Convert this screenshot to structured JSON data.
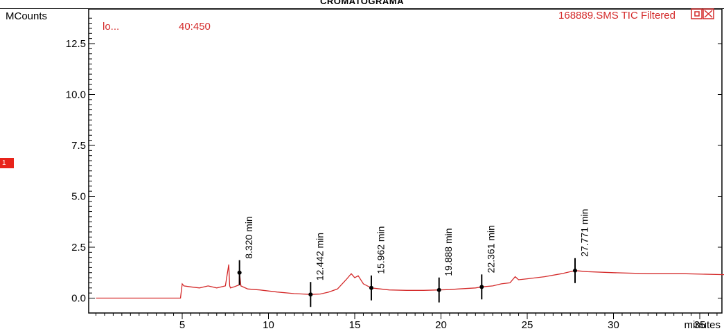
{
  "title": "CROMATOGRAMA",
  "marker_badge": "1",
  "trace_info": {
    "scan_label": "lo...",
    "mass_range": "40:450",
    "file_label": "168889.SMS TIC Filtered"
  },
  "colors": {
    "trace": "#d42a2a",
    "axis": "#000000",
    "badge": "#e8231a"
  },
  "chart_data": {
    "type": "line",
    "title": "CROMATOGRAMA",
    "xlabel": "minutes",
    "ylabel": "MCounts",
    "xlim": [
      0,
      36.5
    ],
    "ylim": [
      -0.7,
      14.2
    ],
    "xticks": [
      5,
      10,
      15,
      20,
      25,
      30,
      35
    ],
    "yticks": [
      0.0,
      2.5,
      5.0,
      7.5,
      10.0,
      12.5
    ],
    "ytick_labels": [
      "0.0",
      "2.5",
      "5.0",
      "7.5",
      "10.0",
      "12.5"
    ],
    "xtick_labels": [
      "5",
      "10",
      "15",
      "20",
      "25",
      "30",
      "35"
    ],
    "series": [
      {
        "x": [
          0,
          4.9,
          5.0,
          5.1,
          5.5,
          6.0,
          6.5,
          7.0,
          7.5,
          7.7,
          7.75,
          7.8,
          8.0,
          8.3,
          8.32,
          8.4,
          8.8,
          9.5,
          10.5,
          11.5,
          12.0,
          12.44,
          13.0,
          13.5,
          14.0,
          14.5,
          14.8,
          15.0,
          15.2,
          15.5,
          15.96,
          16.5,
          17.0,
          18.0,
          19.0,
          19.89,
          20.5,
          21.0,
          22.0,
          22.36,
          23.0,
          23.5,
          24.0,
          24.3,
          24.5,
          25.0,
          26.0,
          27.0,
          27.77,
          28.5,
          30.0,
          32.0,
          34.0,
          36.5
        ],
        "y": [
          0.0,
          0.0,
          0.7,
          0.6,
          0.55,
          0.5,
          0.6,
          0.5,
          0.6,
          1.65,
          0.6,
          0.5,
          0.55,
          0.65,
          1.25,
          0.6,
          0.45,
          0.4,
          0.3,
          0.22,
          0.2,
          0.18,
          0.2,
          0.3,
          0.45,
          0.9,
          1.2,
          1.0,
          1.1,
          0.7,
          0.5,
          0.45,
          0.4,
          0.38,
          0.38,
          0.4,
          0.42,
          0.45,
          0.5,
          0.55,
          0.6,
          0.7,
          0.75,
          1.05,
          0.9,
          0.95,
          1.05,
          1.2,
          1.35,
          1.3,
          1.25,
          1.2,
          1.2,
          1.15
        ]
      }
    ],
    "peak_labels": [
      {
        "x": 8.32,
        "y": 1.25,
        "label": "8.320 min"
      },
      {
        "x": 12.442,
        "y": 0.18,
        "label": "12.442 min"
      },
      {
        "x": 15.962,
        "y": 0.5,
        "label": "15.962 min"
      },
      {
        "x": 19.888,
        "y": 0.4,
        "label": "19.888 min"
      },
      {
        "x": 22.361,
        "y": 0.55,
        "label": "22.361 min"
      },
      {
        "x": 27.771,
        "y": 1.35,
        "label": "27.771 min"
      }
    ]
  }
}
